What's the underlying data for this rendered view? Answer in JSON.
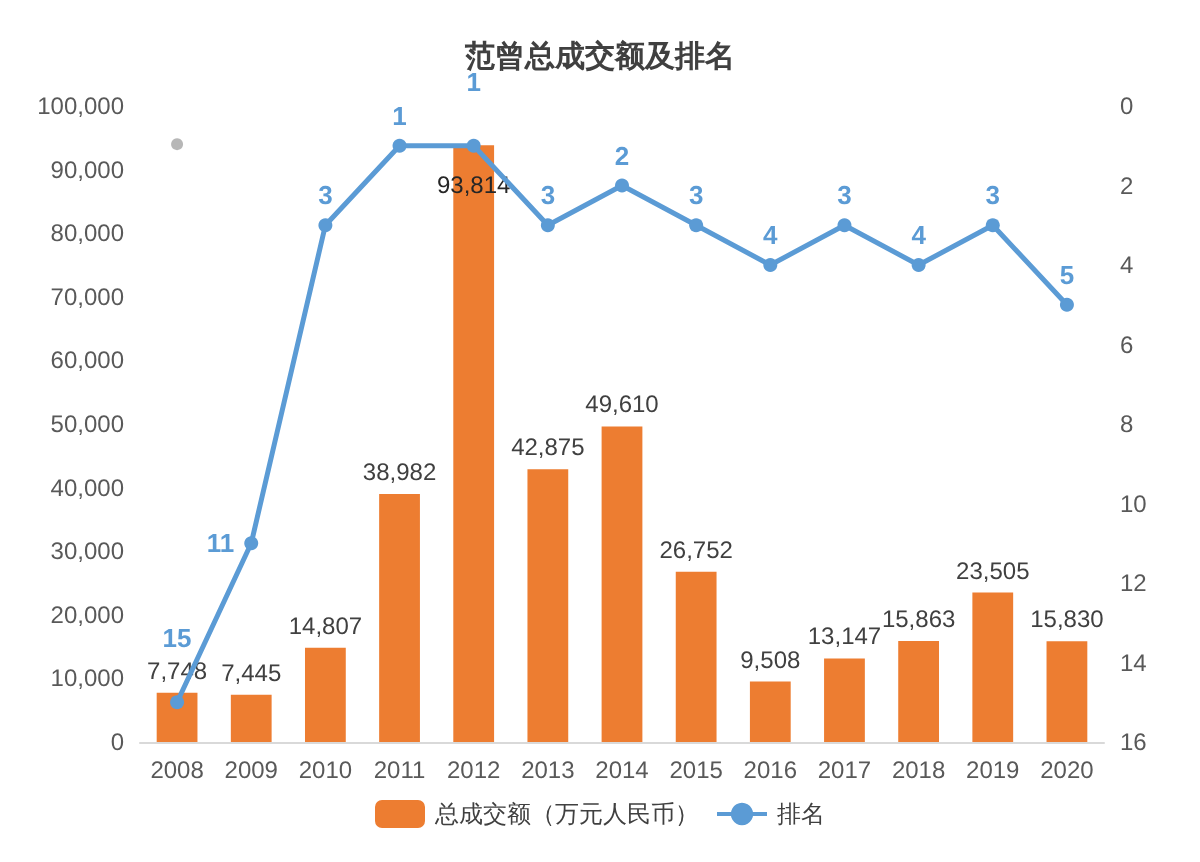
{
  "chart_data": {
    "type": "bar",
    "title": "范曾总成交额及排名",
    "categories": [
      "2008",
      "2009",
      "2010",
      "2011",
      "2012",
      "2013",
      "2014",
      "2015",
      "2016",
      "2017",
      "2018",
      "2019",
      "2020"
    ],
    "series": [
      {
        "name": "总成交额（万元人民币）",
        "color": "#ed7d31",
        "values": [
          7748,
          7445,
          14807,
          38982,
          93814,
          42875,
          49610,
          26752,
          9508,
          13147,
          15863,
          23505,
          15830
        ],
        "value_labels": [
          "7,748",
          "7,445",
          "14,807",
          "38,982",
          "93,814",
          "42,875",
          "49,610",
          "26,752",
          "9,508",
          "13,147",
          "15,863",
          "23,505",
          "15,830"
        ]
      },
      {
        "name": "排名",
        "type": "line",
        "axis": "y2",
        "color": "#5b9bd5",
        "marker": "circle",
        "values": [
          15,
          11,
          3,
          1,
          1,
          3,
          2,
          3,
          4,
          3,
          4,
          3,
          5
        ],
        "value_labels": [
          "15",
          "11",
          "3",
          "1",
          "1",
          "3",
          "2",
          "3",
          "4",
          "3",
          "4",
          "3",
          "5"
        ]
      },
      {
        "type": "scatter",
        "color": "#a5a5a5",
        "marker": "circle",
        "values": [
          94000,
          null,
          null,
          null,
          null,
          null,
          null,
          null,
          null,
          null,
          null,
          null,
          null
        ]
      }
    ],
    "ylim": [
      0,
      100000
    ],
    "yticks": [
      0,
      {
        "value": 10000,
        "label": "10,000"
      },
      {
        "value": 20000,
        "label": "20,000"
      },
      {
        "value": 30000,
        "label": "30,000"
      },
      {
        "value": 40000,
        "label": "40,000"
      },
      {
        "value": 50000,
        "label": "50,000"
      },
      {
        "value": 60000,
        "label": "60,000"
      },
      {
        "value": 70000,
        "label": "70,000"
      },
      {
        "value": 80000,
        "label": "80,000"
      },
      {
        "value": 90000,
        "label": "90,000"
      },
      {
        "value": 100000,
        "label": "100,000"
      }
    ],
    "y2lim": [
      16,
      0
    ],
    "y2ticks": [
      0,
      2,
      4,
      6,
      8,
      10,
      12,
      14,
      16
    ],
    "legend": "bottom"
  }
}
